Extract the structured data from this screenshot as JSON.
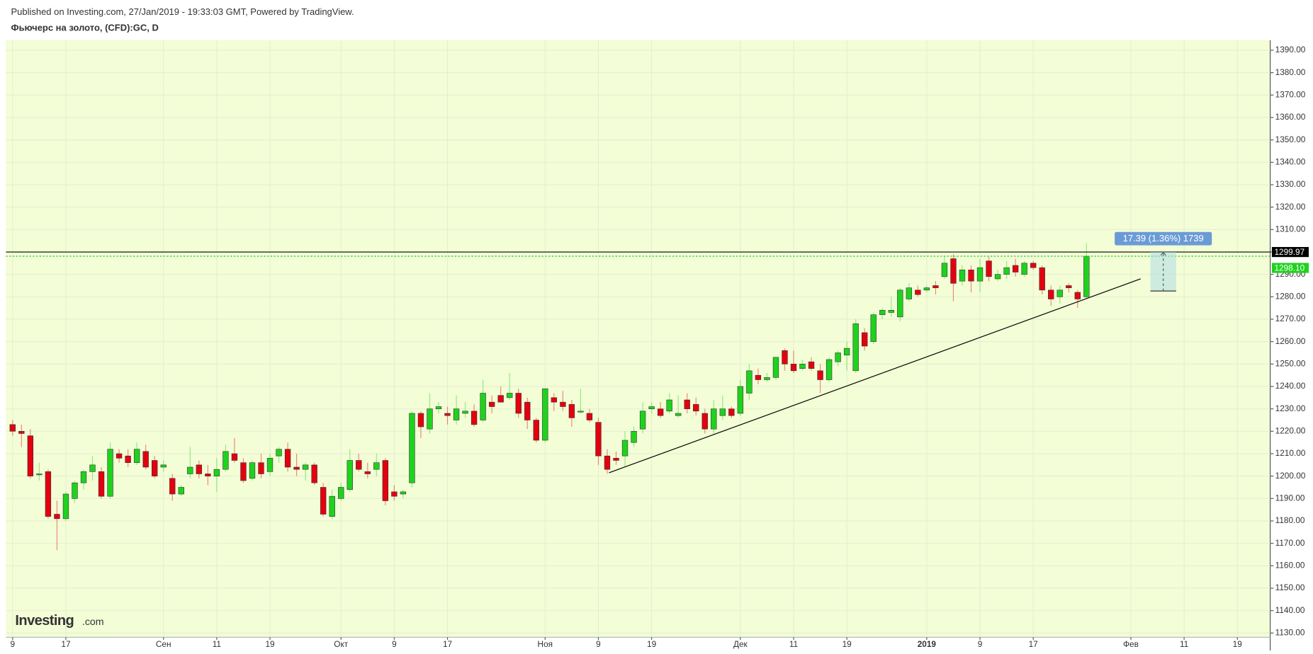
{
  "header": {
    "published": "Published on Investing.com, 27/Jan/2019 - 19:33:03 GMT, Powered by TradingView.",
    "symbol": "Фьючерс на золото, (CFD):GC, D"
  },
  "logo": {
    "brand": "Investing",
    "suffix": ".com"
  },
  "chart_data": {
    "type": "candlestick",
    "x": [
      0,
      1,
      2,
      3,
      4,
      5,
      6,
      7,
      8,
      9,
      10,
      11,
      12,
      13,
      14,
      15,
      16,
      17,
      18,
      19,
      20,
      21,
      22,
      23,
      24,
      25,
      26,
      27,
      28,
      29,
      30,
      31,
      32,
      33,
      34,
      35,
      36,
      37,
      38,
      39,
      40,
      41,
      42,
      43,
      44,
      45,
      46,
      47,
      48,
      49,
      50,
      51,
      52,
      53,
      54,
      55,
      56,
      57,
      58,
      59,
      60,
      61,
      62,
      63,
      64,
      65,
      66,
      67,
      68,
      69,
      70,
      71,
      72,
      73,
      74,
      75,
      76,
      77,
      78,
      79,
      80,
      81,
      82,
      83,
      84,
      85,
      86,
      87,
      88,
      89,
      90,
      91,
      92,
      93,
      94,
      95,
      96,
      97,
      98,
      99,
      100,
      101,
      102,
      103,
      104,
      105,
      106,
      107,
      108,
      109,
      110,
      111,
      112,
      113,
      114,
      115,
      116,
      117,
      118,
      119,
      120,
      121
    ],
    "open": [
      1223,
      1220,
      1218,
      1201,
      1202,
      1183,
      1181,
      1190,
      1197,
      1202,
      1202,
      1191,
      1210,
      1209,
      1206,
      1211,
      1207,
      1204,
      1199,
      1192,
      1201,
      1205,
      1201,
      1200,
      1203,
      1210,
      1206,
      1199,
      1206,
      1202,
      1209,
      1212,
      1204,
      1203,
      1205,
      1195,
      1182,
      1190,
      1194,
      1207,
      1202,
      1203,
      1207,
      1193,
      1192,
      1197,
      1228,
      1221,
      1230,
      1228,
      1225,
      1228,
      1229,
      1225,
      1233,
      1236,
      1235,
      1237,
      1233,
      1225,
      1216,
      1235,
      1233,
      1232,
      1229,
      1228,
      1224,
      1209,
      1208,
      1209,
      1215,
      1221,
      1230,
      1230,
      1229,
      1227,
      1234,
      1232,
      1228,
      1221,
      1227,
      1230,
      1228,
      1237,
      1245,
      1243,
      1244,
      1256,
      1250,
      1248,
      1251,
      1247,
      1243,
      1251,
      1254,
      1247,
      1264,
      1260,
      1272,
      1273,
      1271,
      1279,
      1283,
      1283,
      1285,
      1289,
      1297,
      1287,
      1292,
      1287,
      1296,
      1288,
      1290,
      1294,
      1290,
      1295,
      1293,
      1283,
      1280,
      1285,
      1282,
      1280
    ],
    "high": [
      1225,
      1223,
      1221,
      1206,
      1203,
      1189,
      1193,
      1198,
      1203,
      1209,
      1204,
      1215,
      1212,
      1212,
      1215,
      1214,
      1209,
      1207,
      1201,
      1196,
      1213,
      1207,
      1205,
      1208,
      1214,
      1217,
      1208,
      1207,
      1210,
      1210,
      1213,
      1215,
      1210,
      1206,
      1206,
      1197,
      1194,
      1197,
      1212,
      1210,
      1206,
      1210,
      1208,
      1196,
      1194,
      1229,
      1229,
      1237,
      1233,
      1231,
      1236,
      1233,
      1232,
      1243,
      1236,
      1240,
      1246,
      1239,
      1235,
      1226,
      1239,
      1237,
      1238,
      1234,
      1239,
      1230,
      1226,
      1212,
      1211,
      1220,
      1222,
      1233,
      1233,
      1233,
      1237,
      1236,
      1237,
      1235,
      1230,
      1234,
      1236,
      1231,
      1243,
      1250,
      1248,
      1246,
      1253,
      1257,
      1256,
      1252,
      1253,
      1250,
      1253,
      1256,
      1260,
      1270,
      1266,
      1273,
      1275,
      1280,
      1284,
      1286,
      1285,
      1285,
      1287,
      1298,
      1299,
      1294,
      1294,
      1297,
      1298,
      1292,
      1296,
      1297,
      1296,
      1296,
      1294,
      1285,
      1285,
      1286,
      1283,
      1304
    ],
    "low": [
      1218,
      1213,
      1199,
      1198,
      1181,
      1167,
      1180,
      1188,
      1194,
      1198,
      1190,
      1190,
      1206,
      1204,
      1205,
      1203,
      1199,
      1202,
      1189,
      1191,
      1199,
      1199,
      1196,
      1193,
      1202,
      1206,
      1197,
      1198,
      1199,
      1200,
      1206,
      1202,
      1200,
      1198,
      1196,
      1182,
      1181,
      1189,
      1193,
      1202,
      1199,
      1200,
      1187,
      1189,
      1190,
      1195,
      1217,
      1219,
      1228,
      1223,
      1223,
      1226,
      1222,
      1224,
      1228,
      1233,
      1234,
      1226,
      1221,
      1215,
      1215,
      1229,
      1229,
      1222,
      1228,
      1224,
      1205,
      1201,
      1205,
      1204,
      1213,
      1219,
      1228,
      1226,
      1228,
      1226,
      1228,
      1227,
      1219,
      1219,
      1225,
      1226,
      1227,
      1234,
      1241,
      1242,
      1243,
      1247,
      1246,
      1247,
      1247,
      1237,
      1242,
      1249,
      1247,
      1246,
      1256,
      1259,
      1270,
      1271,
      1269,
      1278,
      1280,
      1282,
      1281,
      1288,
      1278,
      1285,
      1282,
      1282,
      1287,
      1287,
      1288,
      1289,
      1289,
      1292,
      1281,
      1276,
      1277,
      1282,
      1275,
      1279
    ],
    "close": [
      1220,
      1219,
      1200,
      1201,
      1182,
      1181,
      1192,
      1197,
      1202,
      1205,
      1191,
      1212,
      1208,
      1206,
      1212,
      1204,
      1200,
      1205,
      1192,
      1195,
      1204,
      1201,
      1200,
      1203,
      1211,
      1207,
      1198,
      1206,
      1201,
      1208,
      1212,
      1204,
      1203,
      1205,
      1197,
      1183,
      1191,
      1195,
      1207,
      1203,
      1201,
      1206,
      1189,
      1191,
      1193,
      1228,
      1222,
      1230,
      1231,
      1227,
      1230,
      1229,
      1223,
      1237,
      1231,
      1233,
      1237,
      1228,
      1225,
      1216,
      1239,
      1233,
      1231,
      1226,
      1229,
      1225,
      1209,
      1203,
      1207,
      1216,
      1220,
      1229,
      1231,
      1227,
      1234,
      1228,
      1230,
      1229,
      1221,
      1230,
      1230,
      1227,
      1240,
      1247,
      1243,
      1244,
      1253,
      1250,
      1247,
      1250,
      1248,
      1243,
      1252,
      1255,
      1257,
      1268,
      1258,
      1272,
      1274,
      1274,
      1283,
      1284,
      1281,
      1284,
      1284,
      1295,
      1286,
      1292,
      1287,
      1293,
      1289,
      1290,
      1293,
      1291,
      1295,
      1293,
      1283,
      1279,
      1283,
      1284,
      1279,
      1298.1
    ],
    "up_color": "#1ed21e",
    "down_color": "#e3000f",
    "background": "#f3fdd6",
    "xlim": [
      -0.75,
      141.7
    ],
    "xticks": [
      {
        "value": 0,
        "label": "9"
      },
      {
        "value": 6,
        "label": "17"
      },
      {
        "value": 17,
        "label": "Сен"
      },
      {
        "value": 23,
        "label": "11"
      },
      {
        "value": 29,
        "label": "19"
      },
      {
        "value": 37,
        "label": "Окт"
      },
      {
        "value": 43,
        "label": "9"
      },
      {
        "value": 49,
        "label": "17"
      },
      {
        "value": 60,
        "label": "Ноя"
      },
      {
        "value": 66,
        "label": "9"
      },
      {
        "value": 72,
        "label": "19"
      },
      {
        "value": 82,
        "label": "Дек"
      },
      {
        "value": 88,
        "label": "11"
      },
      {
        "value": 94,
        "label": "19"
      },
      {
        "value": 103,
        "label": "2019"
      },
      {
        "value": 109,
        "label": "9"
      },
      {
        "value": 115,
        "label": "17"
      },
      {
        "value": 126,
        "label": "Фев"
      },
      {
        "value": 132,
        "label": "11"
      },
      {
        "value": 138,
        "label": "19"
      }
    ],
    "ylim": [
      1128.1,
      1394.5
    ],
    "yticks": [
      {
        "value": 1130,
        "label": "1130.00"
      },
      {
        "value": 1140,
        "label": "1140.00"
      },
      {
        "value": 1150,
        "label": "1150.00"
      },
      {
        "value": 1160,
        "label": "1160.00"
      },
      {
        "value": 1170,
        "label": "1170.00"
      },
      {
        "value": 1180,
        "label": "1180.00"
      },
      {
        "value": 1190,
        "label": "1190.00"
      },
      {
        "value": 1200,
        "label": "1200.00"
      },
      {
        "value": 1210,
        "label": "1210.00"
      },
      {
        "value": 1220,
        "label": "1220.00"
      },
      {
        "value": 1230,
        "label": "1230.00"
      },
      {
        "value": 1240,
        "label": "1240.00"
      },
      {
        "value": 1250,
        "label": "1250.00"
      },
      {
        "value": 1260,
        "label": "1260.00"
      },
      {
        "value": 1270,
        "label": "1270.00"
      },
      {
        "value": 1280,
        "label": "1280.00"
      },
      {
        "value": 1290,
        "label": "1290.00"
      },
      {
        "value": 1300,
        "label": "1300.00"
      },
      {
        "value": 1310,
        "label": "1310.00"
      },
      {
        "value": 1320,
        "label": "1320.00"
      },
      {
        "value": 1330,
        "label": "1330.00"
      },
      {
        "value": 1340,
        "label": "1340.00"
      },
      {
        "value": 1350,
        "label": "1350.00"
      },
      {
        "value": 1360,
        "label": "1360.00"
      },
      {
        "value": 1370,
        "label": "1370.00"
      },
      {
        "value": 1380,
        "label": "1380.00"
      },
      {
        "value": 1390,
        "label": "1390.00"
      }
    ],
    "hidden_yticks": [
      1300
    ],
    "grid": true,
    "price_lines": [
      {
        "value": 1299.97,
        "label": "1299.97",
        "color": "#000000"
      },
      {
        "value": 1298.1,
        "label": "1298.10",
        "color": "#1ed21e"
      }
    ],
    "trend_line": {
      "x": [
        67.2,
        127.1
      ],
      "y": [
        1201.5,
        1288
      ]
    },
    "measure": {
      "label": "17.39 (1.36%) 1739",
      "x": [
        128.2,
        131.1
      ],
      "y": [
        1282.58,
        1299.97
      ]
    }
  }
}
